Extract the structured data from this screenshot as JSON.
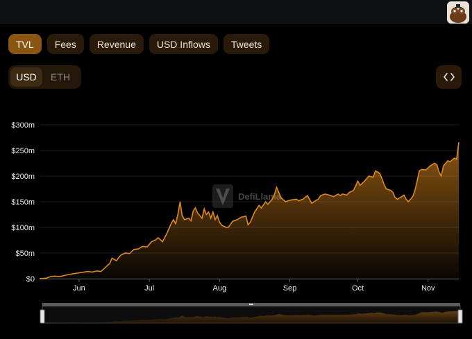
{
  "tabs": [
    "TVL",
    "Fees",
    "Revenue",
    "USD Inflows",
    "Tweets"
  ],
  "currency": {
    "usd_label": "USD",
    "eth_label": "ETH"
  },
  "watermark": "DefiLlama",
  "colors": {
    "accent": "#e08a1e",
    "tab_active": "#8a5510",
    "tab_bg": "#2a1a0a"
  },
  "icons": {
    "embed": "code-brackets-icon",
    "avatar": "llama-avatar-icon"
  },
  "chart_data": {
    "type": "area",
    "ylabel": "",
    "xlabel": "",
    "y_unit": "USD",
    "ylim": [
      0,
      300
    ],
    "yticks": [
      "$0",
      "$50m",
      "$100m",
      "$150m",
      "$200m",
      "$250m",
      "$300m"
    ],
    "ytick_values": [
      0,
      50,
      100,
      150,
      200,
      250,
      300
    ],
    "xticks": [
      "Jun",
      "Jul",
      "Aug",
      "Sep",
      "Oct",
      "Nov"
    ],
    "xtick_days": [
      18,
      50,
      82,
      114,
      145,
      177
    ],
    "series": [
      {
        "values_musd": [
          [
            0,
            0
          ],
          [
            3,
            1
          ],
          [
            5,
            4
          ],
          [
            7,
            5
          ],
          [
            9,
            4
          ],
          [
            11,
            6
          ],
          [
            13,
            8
          ],
          [
            16,
            10
          ],
          [
            19,
            12
          ],
          [
            22,
            14
          ],
          [
            24,
            13
          ],
          [
            26,
            15
          ],
          [
            28,
            14
          ],
          [
            30,
            22
          ],
          [
            32,
            30
          ],
          [
            33,
            40
          ],
          [
            35,
            35
          ],
          [
            37,
            46
          ],
          [
            39,
            50
          ],
          [
            41,
            49
          ],
          [
            43,
            57
          ],
          [
            45,
            58
          ],
          [
            47,
            63
          ],
          [
            49,
            62
          ],
          [
            51,
            72
          ],
          [
            53,
            76
          ],
          [
            54,
            80
          ],
          [
            56,
            72
          ],
          [
            58,
            88
          ],
          [
            60,
            108
          ],
          [
            61,
            115
          ],
          [
            62,
            107
          ],
          [
            63,
            125
          ],
          [
            64,
            150
          ],
          [
            65,
            123
          ],
          [
            66,
            115
          ],
          [
            68,
            118
          ],
          [
            69,
            113
          ],
          [
            70,
            132
          ],
          [
            71,
            138
          ],
          [
            72,
            128
          ],
          [
            73,
            123
          ],
          [
            74,
            118
          ],
          [
            75,
            136
          ],
          [
            76,
            125
          ],
          [
            77,
            130
          ],
          [
            78,
            118
          ],
          [
            79,
            130
          ],
          [
            80,
            115
          ],
          [
            81,
            123
          ],
          [
            82,
            110
          ],
          [
            83,
            104
          ],
          [
            85,
            100
          ],
          [
            86,
            100
          ],
          [
            87,
            106
          ],
          [
            88,
            112
          ],
          [
            90,
            115
          ],
          [
            92,
            120
          ],
          [
            94,
            122
          ],
          [
            95,
            105
          ],
          [
            96,
            110
          ],
          [
            98,
            130
          ],
          [
            100,
            143
          ],
          [
            101,
            138
          ],
          [
            103,
            150
          ],
          [
            104,
            145
          ],
          [
            106,
            155
          ],
          [
            107,
            164
          ],
          [
            108,
            178
          ],
          [
            110,
            158
          ],
          [
            112,
            150
          ],
          [
            114,
            153
          ],
          [
            117,
            155
          ],
          [
            118,
            152
          ],
          [
            120,
            155
          ],
          [
            122,
            162
          ],
          [
            124,
            147
          ],
          [
            126,
            153
          ],
          [
            127,
            155
          ],
          [
            128,
            162
          ],
          [
            130,
            165
          ],
          [
            132,
            163
          ],
          [
            134,
            160
          ],
          [
            136,
            165
          ],
          [
            137,
            162
          ],
          [
            138,
            165
          ],
          [
            140,
            163
          ],
          [
            141,
            168
          ],
          [
            143,
            172
          ],
          [
            145,
            190
          ],
          [
            146,
            182
          ],
          [
            148,
            190
          ],
          [
            150,
            200
          ],
          [
            152,
            198
          ],
          [
            153,
            210
          ],
          [
            154,
            208
          ],
          [
            155,
            205
          ],
          [
            156,
            195
          ],
          [
            157,
            183
          ],
          [
            158,
            175
          ],
          [
            160,
            172
          ],
          [
            161,
            168
          ],
          [
            162,
            158
          ],
          [
            163,
            155
          ],
          [
            165,
            160
          ],
          [
            166,
            163
          ],
          [
            167,
            155
          ],
          [
            168,
            150
          ],
          [
            170,
            160
          ],
          [
            171,
            172
          ],
          [
            172,
            190
          ],
          [
            173,
            210
          ],
          [
            174,
            213
          ],
          [
            176,
            212
          ],
          [
            178,
            220
          ],
          [
            180,
            225
          ],
          [
            181,
            222
          ],
          [
            182,
            208
          ],
          [
            183,
            200
          ],
          [
            184,
            220
          ],
          [
            186,
            230
          ],
          [
            187,
            228
          ],
          [
            189,
            235
          ],
          [
            190,
            233
          ],
          [
            191,
            266
          ]
        ]
      }
    ],
    "legend": "none",
    "grid": "horizontal"
  }
}
